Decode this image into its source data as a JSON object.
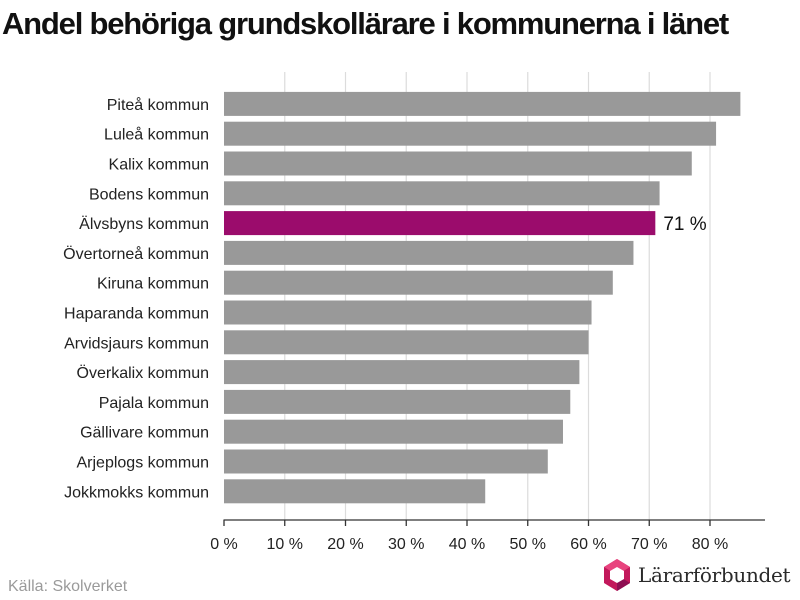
{
  "title": "Andel behöriga grundskollärare i kommunerna i länet",
  "source": "Källa: Skolverket",
  "logo_text": "Lärarförbundet",
  "colors": {
    "bar": "#999999",
    "highlight": "#9b0c6c",
    "grid": "#dcdcdc",
    "axis": "#333333"
  },
  "chart_data": {
    "type": "bar",
    "orientation": "horizontal",
    "title": "Andel behöriga grundskollärare i kommunerna i länet",
    "categories": [
      "Piteå kommun",
      "Luleå kommun",
      "Kalix kommun",
      "Bodens kommun",
      "Älvsbyns kommun",
      "Övertorneå kommun",
      "Kiruna kommun",
      "Haparanda kommun",
      "Arvidsjaurs kommun",
      "Överkalix kommun",
      "Pajala kommun",
      "Gällivare kommun",
      "Arjeplogs kommun",
      "Jokkmokks kommun"
    ],
    "values": [
      85,
      81,
      77,
      71.7,
      71,
      67.4,
      64,
      60.5,
      60,
      58.5,
      57,
      55.8,
      53.3,
      43
    ],
    "highlight_index": 4,
    "data_labels": [
      {
        "index": 4,
        "text": "71 %"
      }
    ],
    "xlim": [
      0,
      89
    ],
    "x_ticks": [
      0,
      10,
      20,
      30,
      40,
      50,
      60,
      70,
      80
    ],
    "x_tick_labels": [
      "0 %",
      "10 %",
      "20 %",
      "30 %",
      "40 %",
      "50 %",
      "60 %",
      "70 %",
      "80 %"
    ],
    "xlabel": "",
    "ylabel": "",
    "grid": true,
    "legend": "none"
  }
}
